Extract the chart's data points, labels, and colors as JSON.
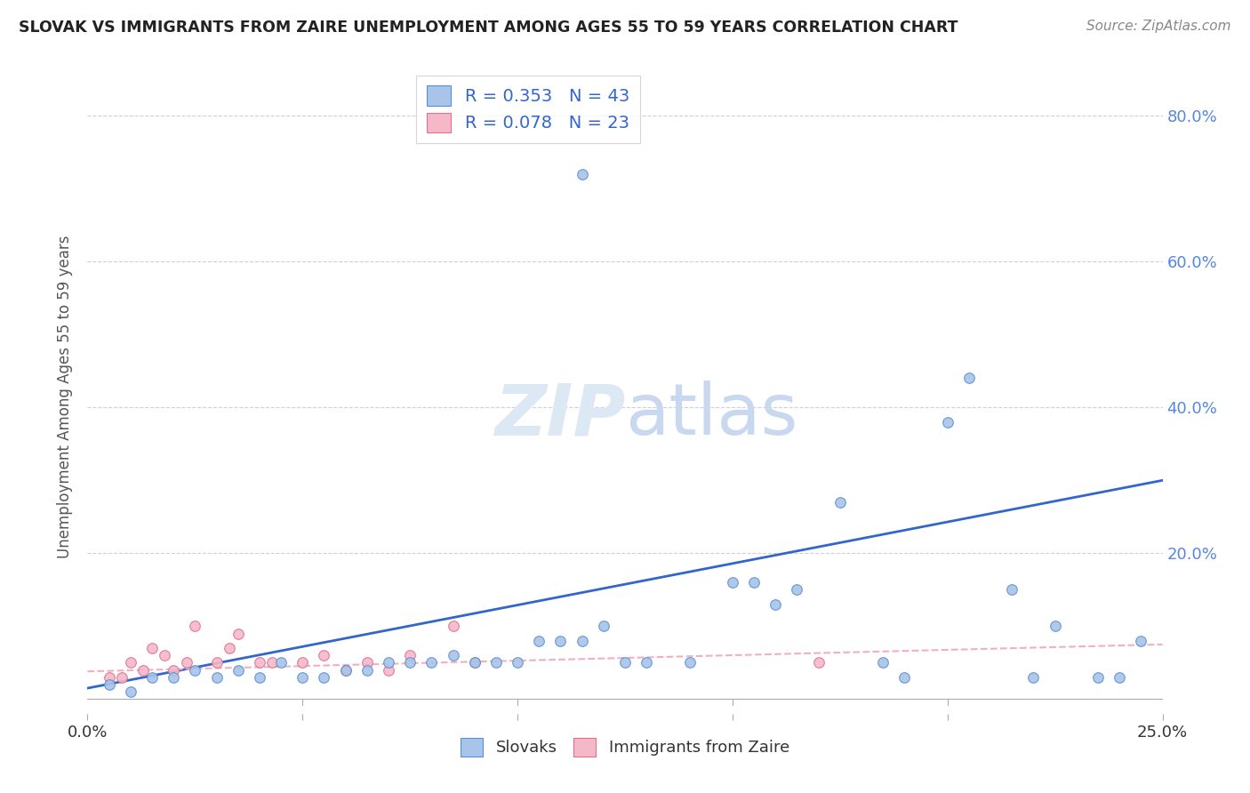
{
  "title": "SLOVAK VS IMMIGRANTS FROM ZAIRE UNEMPLOYMENT AMONG AGES 55 TO 59 YEARS CORRELATION CHART",
  "source": "Source: ZipAtlas.com",
  "ylabel": "Unemployment Among Ages 55 to 59 years",
  "xlim": [
    0.0,
    0.25
  ],
  "ylim": [
    -0.02,
    0.85
  ],
  "blue_scatter_x": [
    0.115,
    0.005,
    0.01,
    0.015,
    0.02,
    0.025,
    0.03,
    0.035,
    0.04,
    0.045,
    0.05,
    0.055,
    0.06,
    0.065,
    0.07,
    0.075,
    0.08,
    0.085,
    0.09,
    0.095,
    0.1,
    0.105,
    0.11,
    0.115,
    0.12,
    0.125,
    0.13,
    0.14,
    0.15,
    0.155,
    0.16,
    0.165,
    0.175,
    0.185,
    0.19,
    0.2,
    0.205,
    0.215,
    0.22,
    0.225,
    0.235,
    0.245,
    0.24
  ],
  "blue_scatter_y": [
    0.72,
    0.02,
    0.01,
    0.03,
    0.03,
    0.04,
    0.03,
    0.04,
    0.03,
    0.05,
    0.03,
    0.03,
    0.04,
    0.04,
    0.05,
    0.05,
    0.05,
    0.06,
    0.05,
    0.05,
    0.05,
    0.08,
    0.08,
    0.08,
    0.1,
    0.05,
    0.05,
    0.05,
    0.16,
    0.16,
    0.13,
    0.15,
    0.27,
    0.05,
    0.03,
    0.38,
    0.44,
    0.15,
    0.03,
    0.1,
    0.03,
    0.08,
    0.03
  ],
  "pink_scatter_x": [
    0.005,
    0.008,
    0.01,
    0.013,
    0.015,
    0.018,
    0.02,
    0.023,
    0.025,
    0.03,
    0.033,
    0.035,
    0.04,
    0.043,
    0.05,
    0.055,
    0.06,
    0.065,
    0.07,
    0.075,
    0.085,
    0.09,
    0.17
  ],
  "pink_scatter_y": [
    0.03,
    0.03,
    0.05,
    0.04,
    0.07,
    0.06,
    0.04,
    0.05,
    0.1,
    0.05,
    0.07,
    0.09,
    0.05,
    0.05,
    0.05,
    0.06,
    0.04,
    0.05,
    0.04,
    0.06,
    0.1,
    0.05,
    0.05
  ],
  "blue_line_x": [
    0.0,
    0.25
  ],
  "blue_line_y": [
    0.015,
    0.3
  ],
  "pink_line_x": [
    0.0,
    0.25
  ],
  "pink_line_y": [
    0.038,
    0.075
  ],
  "R_blue": "0.353",
  "N_blue": "43",
  "R_pink": "0.078",
  "N_pink": "23",
  "blue_color": "#a8c4e8",
  "blue_edge": "#5b8fd4",
  "pink_color": "#f5b8c8",
  "pink_edge": "#e07090",
  "blue_line_color": "#3366cc",
  "pink_line_color": "#f0b0c0",
  "watermark_color": "#dde8f5",
  "background_color": "#ffffff",
  "grid_color": "#d0d0d0",
  "right_tick_color": "#5588dd",
  "title_color": "#222222",
  "source_color": "#888888",
  "ylabel_color": "#555555",
  "legend_label_color": "#3366cc"
}
